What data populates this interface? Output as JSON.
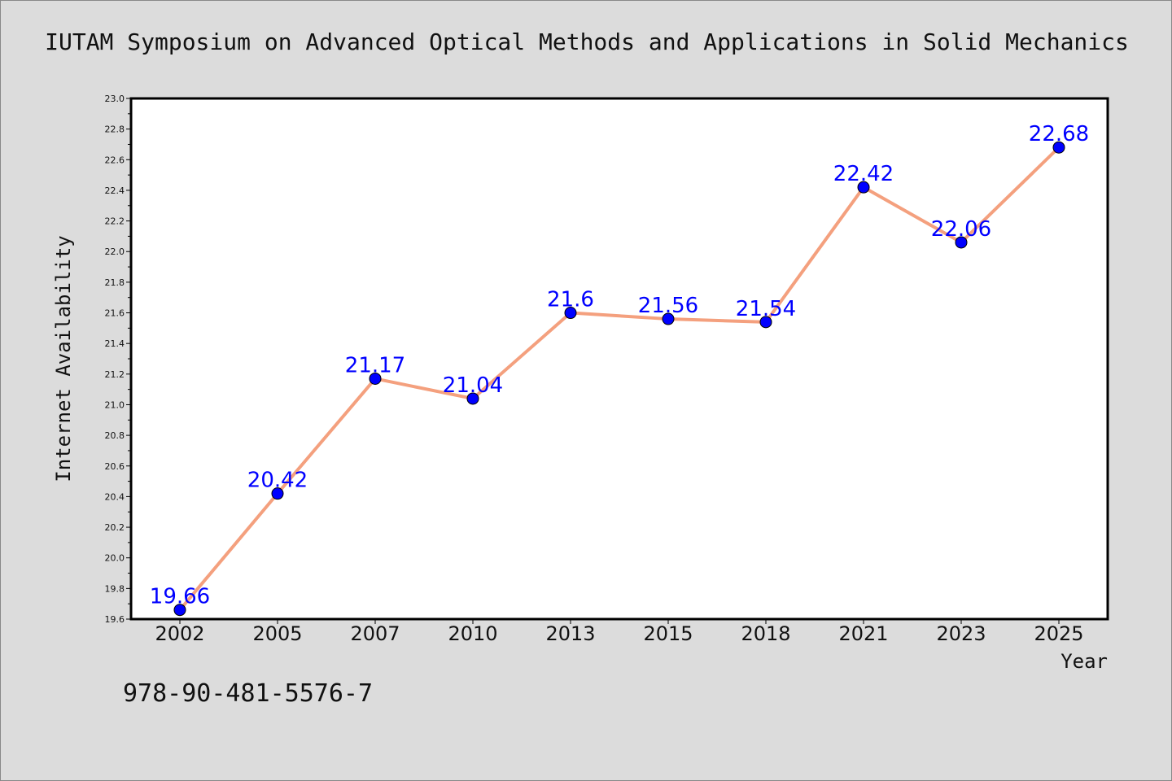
{
  "title": "IUTAM Symposium on Advanced Optical Methods and Applications in Solid Mechanics",
  "footer_code": "978-90-481-5576-7",
  "chart_data": {
    "type": "line",
    "title": "IUTAM Symposium on Advanced Optical Methods and Applications in Solid Mechanics",
    "xlabel": "Year",
    "ylabel": "Internet Availability",
    "categories": [
      "2002",
      "2005",
      "2007",
      "2010",
      "2013",
      "2015",
      "2018",
      "2021",
      "2023",
      "2025"
    ],
    "values": [
      19.66,
      20.42,
      21.17,
      21.04,
      21.6,
      21.56,
      21.54,
      22.42,
      22.06,
      22.68
    ],
    "ylim": [
      19.6,
      23.0
    ],
    "yticks": [
      "19.6",
      "19.8",
      "20.0",
      "20.2",
      "20.4",
      "20.6",
      "20.8",
      "21.0",
      "21.2",
      "21.4",
      "21.6",
      "21.8",
      "22.0",
      "22.2",
      "22.4",
      "22.6",
      "22.8",
      "23.0"
    ],
    "data_labels": [
      "19.66",
      "20.42",
      "21.17",
      "21.04",
      "21.6",
      "21.56",
      "21.54",
      "22.42",
      "22.06",
      "22.68"
    ],
    "grid": false,
    "legend": "none",
    "colors": {
      "line": "#f4a07e",
      "marker": "#0000ff",
      "data_label": "#0000ff"
    }
  }
}
